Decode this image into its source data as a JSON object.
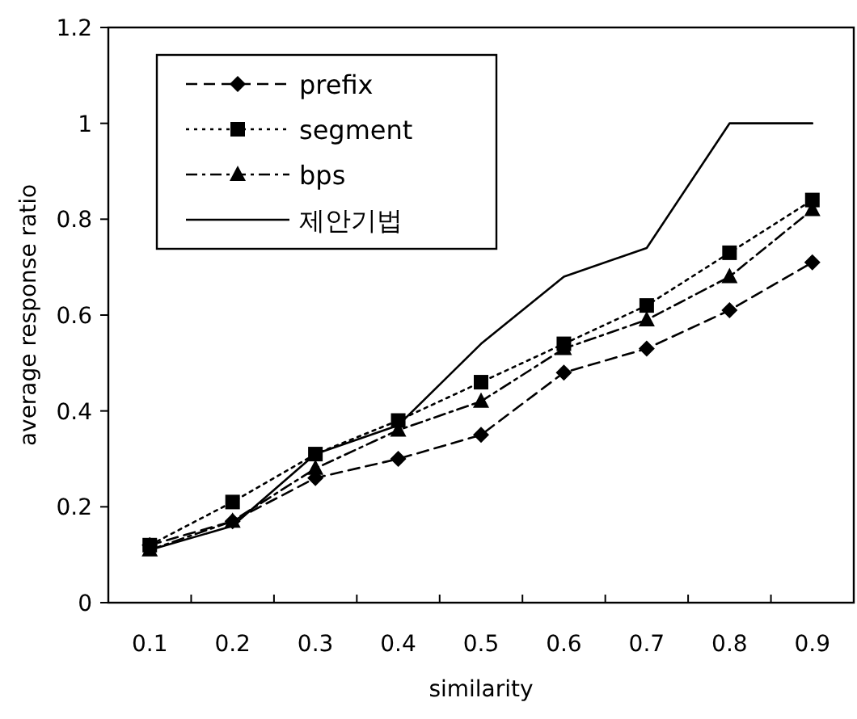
{
  "chart_data": {
    "type": "line",
    "xlabel": "similarity",
    "ylabel": "average response ratio",
    "categories": [
      "0.1",
      "0.2",
      "0.3",
      "0.4",
      "0.5",
      "0.6",
      "0.7",
      "0.8",
      "0.9"
    ],
    "series": [
      {
        "name": "prefix",
        "color": "#000000",
        "marker": "diamond",
        "line_style": "dashed",
        "values": [
          0.12,
          0.17,
          0.26,
          0.3,
          0.35,
          0.48,
          0.53,
          0.61,
          0.71
        ]
      },
      {
        "name": "segment",
        "color": "#000000",
        "marker": "square",
        "line_style": "dotted",
        "values": [
          0.12,
          0.21,
          0.31,
          0.38,
          0.46,
          0.54,
          0.62,
          0.73,
          0.84
        ]
      },
      {
        "name": "bps",
        "color": "#000000",
        "marker": "triangle",
        "line_style": "dashdot",
        "values": [
          0.11,
          0.17,
          0.28,
          0.36,
          0.42,
          0.53,
          0.59,
          0.68,
          0.82
        ]
      },
      {
        "name": "제안기법",
        "color": "#000000",
        "marker": "none",
        "line_style": "solid",
        "values": [
          0.11,
          0.16,
          0.31,
          0.37,
          0.54,
          0.68,
          0.74,
          1.0,
          1.0
        ]
      }
    ],
    "ylim": [
      0,
      1.2
    ],
    "yticks": [
      0,
      0.2,
      0.4,
      0.6,
      0.8,
      1,
      1.2
    ],
    "grid": false,
    "legend": "top left"
  }
}
